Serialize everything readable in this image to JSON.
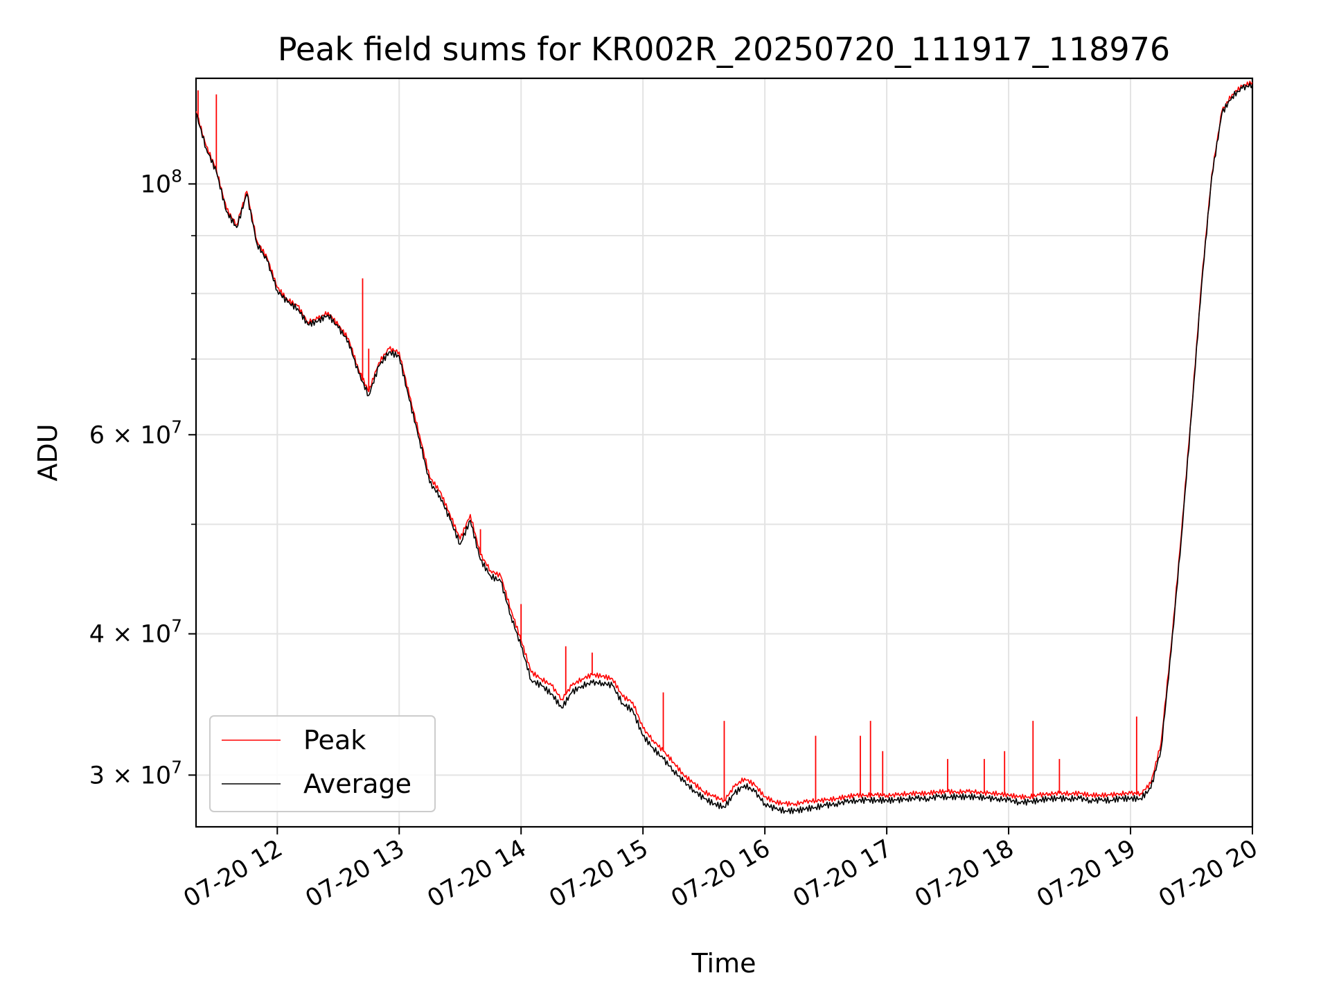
{
  "chart_data": {
    "type": "line",
    "title": "Peak field sums for KR002R_20250720_111917_118976",
    "xlabel": "Time",
    "ylabel": "ADU",
    "yscale": "log",
    "grid": true,
    "legend_position": "lower-left",
    "xlim": [
      "2025-07-20 11:20",
      "2025-07-20 20:00"
    ],
    "ylim": [
      27000000,
      124000000
    ],
    "x_ticks": [
      "2025-07-20 12:00",
      "2025-07-20 13:00",
      "2025-07-20 14:00",
      "2025-07-20 15:00",
      "2025-07-20 16:00",
      "2025-07-20 17:00",
      "2025-07-20 18:00",
      "2025-07-20 19:00",
      "2025-07-20 20:00"
    ],
    "x_tick_labels": [
      "07-20 12",
      "07-20 13",
      "07-20 14",
      "07-20 15",
      "07-20 16",
      "07-20 17",
      "07-20 18",
      "07-20 19",
      "07-20 20"
    ],
    "y_major_ticks": [
      {
        "value": 30000000,
        "mantissa": "3",
        "exponent": "7"
      },
      {
        "value": 40000000,
        "mantissa": "4",
        "exponent": "7"
      },
      {
        "value": 60000000,
        "mantissa": "6",
        "exponent": "7"
      },
      {
        "value": 100000000,
        "mantissa": "",
        "exponent": "8"
      }
    ],
    "y_minor_ticks": [
      50000000,
      70000000,
      80000000,
      90000000
    ],
    "series": [
      {
        "name": "Peak",
        "color": "#ff0000",
        "x": [
          "2025-07-20 11:20",
          "2025-07-20 11:25",
          "2025-07-20 11:30",
          "2025-07-20 11:35",
          "2025-07-20 11:40",
          "2025-07-20 11:45",
          "2025-07-20 11:50",
          "2025-07-20 11:55",
          "2025-07-20 12:00",
          "2025-07-20 12:05",
          "2025-07-20 12:10",
          "2025-07-20 12:15",
          "2025-07-20 12:20",
          "2025-07-20 12:25",
          "2025-07-20 12:30",
          "2025-07-20 12:35",
          "2025-07-20 12:40",
          "2025-07-20 12:45",
          "2025-07-20 12:50",
          "2025-07-20 12:55",
          "2025-07-20 13:00",
          "2025-07-20 13:05",
          "2025-07-20 13:10",
          "2025-07-20 13:15",
          "2025-07-20 13:20",
          "2025-07-20 13:25",
          "2025-07-20 13:30",
          "2025-07-20 13:35",
          "2025-07-20 13:40",
          "2025-07-20 13:45",
          "2025-07-20 13:50",
          "2025-07-20 13:55",
          "2025-07-20 14:00",
          "2025-07-20 14:05",
          "2025-07-20 14:10",
          "2025-07-20 14:15",
          "2025-07-20 14:20",
          "2025-07-20 14:25",
          "2025-07-20 14:30",
          "2025-07-20 14:35",
          "2025-07-20 14:40",
          "2025-07-20 14:45",
          "2025-07-20 14:50",
          "2025-07-20 14:55",
          "2025-07-20 15:00",
          "2025-07-20 15:05",
          "2025-07-20 15:10",
          "2025-07-20 15:15",
          "2025-07-20 15:20",
          "2025-07-20 15:25",
          "2025-07-20 15:30",
          "2025-07-20 15:35",
          "2025-07-20 15:40",
          "2025-07-20 15:45",
          "2025-07-20 15:50",
          "2025-07-20 15:55",
          "2025-07-20 16:00",
          "2025-07-20 16:05",
          "2025-07-20 16:10",
          "2025-07-20 16:15",
          "2025-07-20 16:20",
          "2025-07-20 16:25",
          "2025-07-20 16:30",
          "2025-07-20 16:35",
          "2025-07-20 16:40",
          "2025-07-20 16:45",
          "2025-07-20 16:50",
          "2025-07-20 16:55",
          "2025-07-20 17:00",
          "2025-07-20 17:05",
          "2025-07-20 17:10",
          "2025-07-20 17:15",
          "2025-07-20 17:20",
          "2025-07-20 17:25",
          "2025-07-20 17:30",
          "2025-07-20 17:35",
          "2025-07-20 17:40",
          "2025-07-20 17:45",
          "2025-07-20 17:50",
          "2025-07-20 17:55",
          "2025-07-20 18:00",
          "2025-07-20 18:05",
          "2025-07-20 18:10",
          "2025-07-20 18:15",
          "2025-07-20 18:20",
          "2025-07-20 18:25",
          "2025-07-20 18:30",
          "2025-07-20 18:35",
          "2025-07-20 18:40",
          "2025-07-20 18:45",
          "2025-07-20 18:50",
          "2025-07-20 18:55",
          "2025-07-20 19:00",
          "2025-07-20 19:05",
          "2025-07-20 19:10",
          "2025-07-20 19:15",
          "2025-07-20 19:20",
          "2025-07-20 19:25",
          "2025-07-20 19:30",
          "2025-07-20 19:35",
          "2025-07-20 19:40",
          "2025-07-20 19:45",
          "2025-07-20 19:50",
          "2025-07-20 19:55",
          "2025-07-20 20:00"
        ],
        "values": [
          116000000,
          108000000,
          103000000,
          95000000,
          92000000,
          98500000,
          89000000,
          86000000,
          81000000,
          79000000,
          78000000,
          75500000,
          76000000,
          77000000,
          75000000,
          73000000,
          68500000,
          65500000,
          69500000,
          71500000,
          71000000,
          65000000,
          60000000,
          55000000,
          53500000,
          51000000,
          48500000,
          51000000,
          47000000,
          45500000,
          45000000,
          42000000,
          39500000,
          37000000,
          36500000,
          36000000,
          35000000,
          36000000,
          36500000,
          36800000,
          36700000,
          36500000,
          35200000,
          34800000,
          33000000,
          32200000,
          31500000,
          30800000,
          30000000,
          29500000,
          29000000,
          28700000,
          28500000,
          29300000,
          29800000,
          29400000,
          28700000,
          28400000,
          28300000,
          28300000,
          28400000,
          28500000,
          28500000,
          28600000,
          28700000,
          28800000,
          28800000,
          28800000,
          28800000,
          28800000,
          28900000,
          28900000,
          28900000,
          29000000,
          29000000,
          29000000,
          29000000,
          29000000,
          28900000,
          28900000,
          28800000,
          28700000,
          28700000,
          28800000,
          28900000,
          28900000,
          28900000,
          28900000,
          28800000,
          28800000,
          28800000,
          28900000,
          28900000,
          28900000,
          29500000,
          32000000,
          39000000,
          49000000,
          63000000,
          82000000,
          102000000,
          116000000,
          120000000,
          122000000,
          123000000
        ],
        "spikes": [
          {
            "x": "2025-07-20 11:21",
            "y": 121000000
          },
          {
            "x": "2025-07-20 11:30",
            "y": 120000000
          },
          {
            "x": "2025-07-20 12:42",
            "y": 82500000
          },
          {
            "x": "2025-07-20 12:45",
            "y": 71500000
          },
          {
            "x": "2025-07-20 13:40",
            "y": 49500000
          },
          {
            "x": "2025-07-20 14:00",
            "y": 42500000
          },
          {
            "x": "2025-07-20 14:22",
            "y": 39000000
          },
          {
            "x": "2025-07-20 14:35",
            "y": 38500000
          },
          {
            "x": "2025-07-20 15:10",
            "y": 35500000
          },
          {
            "x": "2025-07-20 15:40",
            "y": 33500000
          },
          {
            "x": "2025-07-20 16:25",
            "y": 32500000
          },
          {
            "x": "2025-07-20 16:47",
            "y": 32500000
          },
          {
            "x": "2025-07-20 16:52",
            "y": 33500000
          },
          {
            "x": "2025-07-20 16:58",
            "y": 31500000
          },
          {
            "x": "2025-07-20 17:30",
            "y": 31000000
          },
          {
            "x": "2025-07-20 17:48",
            "y": 31000000
          },
          {
            "x": "2025-07-20 17:58",
            "y": 31500000
          },
          {
            "x": "2025-07-20 18:12",
            "y": 33500000
          },
          {
            "x": "2025-07-20 18:25",
            "y": 31000000
          },
          {
            "x": "2025-07-20 19:03",
            "y": 33800000
          }
        ]
      },
      {
        "name": "Average",
        "color": "#000000",
        "x": [
          "2025-07-20 11:20",
          "2025-07-20 11:25",
          "2025-07-20 11:30",
          "2025-07-20 11:35",
          "2025-07-20 11:40",
          "2025-07-20 11:45",
          "2025-07-20 11:50",
          "2025-07-20 11:55",
          "2025-07-20 12:00",
          "2025-07-20 12:05",
          "2025-07-20 12:10",
          "2025-07-20 12:15",
          "2025-07-20 12:20",
          "2025-07-20 12:25",
          "2025-07-20 12:30",
          "2025-07-20 12:35",
          "2025-07-20 12:40",
          "2025-07-20 12:45",
          "2025-07-20 12:50",
          "2025-07-20 12:55",
          "2025-07-20 13:00",
          "2025-07-20 13:05",
          "2025-07-20 13:10",
          "2025-07-20 13:15",
          "2025-07-20 13:20",
          "2025-07-20 13:25",
          "2025-07-20 13:30",
          "2025-07-20 13:35",
          "2025-07-20 13:40",
          "2025-07-20 13:45",
          "2025-07-20 13:50",
          "2025-07-20 13:55",
          "2025-07-20 14:00",
          "2025-07-20 14:05",
          "2025-07-20 14:10",
          "2025-07-20 14:15",
          "2025-07-20 14:20",
          "2025-07-20 14:25",
          "2025-07-20 14:30",
          "2025-07-20 14:35",
          "2025-07-20 14:40",
          "2025-07-20 14:45",
          "2025-07-20 14:50",
          "2025-07-20 14:55",
          "2025-07-20 15:00",
          "2025-07-20 15:05",
          "2025-07-20 15:10",
          "2025-07-20 15:15",
          "2025-07-20 15:20",
          "2025-07-20 15:25",
          "2025-07-20 15:30",
          "2025-07-20 15:35",
          "2025-07-20 15:40",
          "2025-07-20 15:45",
          "2025-07-20 15:50",
          "2025-07-20 15:55",
          "2025-07-20 16:00",
          "2025-07-20 16:05",
          "2025-07-20 16:10",
          "2025-07-20 16:15",
          "2025-07-20 16:20",
          "2025-07-20 16:25",
          "2025-07-20 16:30",
          "2025-07-20 16:35",
          "2025-07-20 16:40",
          "2025-07-20 16:45",
          "2025-07-20 16:50",
          "2025-07-20 16:55",
          "2025-07-20 17:00",
          "2025-07-20 17:05",
          "2025-07-20 17:10",
          "2025-07-20 17:15",
          "2025-07-20 17:20",
          "2025-07-20 17:25",
          "2025-07-20 17:30",
          "2025-07-20 17:35",
          "2025-07-20 17:40",
          "2025-07-20 17:45",
          "2025-07-20 17:50",
          "2025-07-20 17:55",
          "2025-07-20 18:00",
          "2025-07-20 18:05",
          "2025-07-20 18:10",
          "2025-07-20 18:15",
          "2025-07-20 18:20",
          "2025-07-20 18:25",
          "2025-07-20 18:30",
          "2025-07-20 18:35",
          "2025-07-20 18:40",
          "2025-07-20 18:45",
          "2025-07-20 18:50",
          "2025-07-20 18:55",
          "2025-07-20 19:00",
          "2025-07-20 19:05",
          "2025-07-20 19:10",
          "2025-07-20 19:15",
          "2025-07-20 19:20",
          "2025-07-20 19:25",
          "2025-07-20 19:30",
          "2025-07-20 19:35",
          "2025-07-20 19:40",
          "2025-07-20 19:45",
          "2025-07-20 19:50",
          "2025-07-20 19:55",
          "2025-07-20 20:00"
        ],
        "values": [
          115500000,
          107500000,
          102500000,
          94500000,
          91500000,
          98000000,
          88500000,
          85500000,
          80500000,
          78600000,
          77600000,
          75100000,
          75600000,
          76600000,
          74600000,
          72600000,
          68000000,
          65000000,
          69000000,
          71000000,
          70400000,
          64400000,
          59400000,
          54400000,
          53000000,
          50500000,
          48000000,
          50400000,
          46500000,
          45000000,
          44500000,
          41500000,
          39000000,
          36400000,
          36000000,
          35400000,
          34400000,
          35500000,
          36000000,
          36200000,
          36200000,
          36000000,
          34700000,
          34200000,
          32500000,
          31700000,
          31000000,
          30300000,
          29600000,
          29100000,
          28600000,
          28300000,
          28100000,
          28900000,
          29400000,
          29000000,
          28300000,
          28000000,
          27900000,
          27900000,
          28000000,
          28100000,
          28200000,
          28300000,
          28400000,
          28500000,
          28500000,
          28500000,
          28500000,
          28500000,
          28600000,
          28600000,
          28600000,
          28700000,
          28700000,
          28700000,
          28700000,
          28700000,
          28600000,
          28600000,
          28500000,
          28400000,
          28400000,
          28500000,
          28600000,
          28600000,
          28600000,
          28600000,
          28500000,
          28500000,
          28500000,
          28600000,
          28600000,
          28600000,
          29200000,
          31600000,
          38600000,
          48600000,
          62500000,
          81500000,
          101500000,
          115500000,
          119500000,
          121500000,
          122500000
        ]
      }
    ]
  }
}
